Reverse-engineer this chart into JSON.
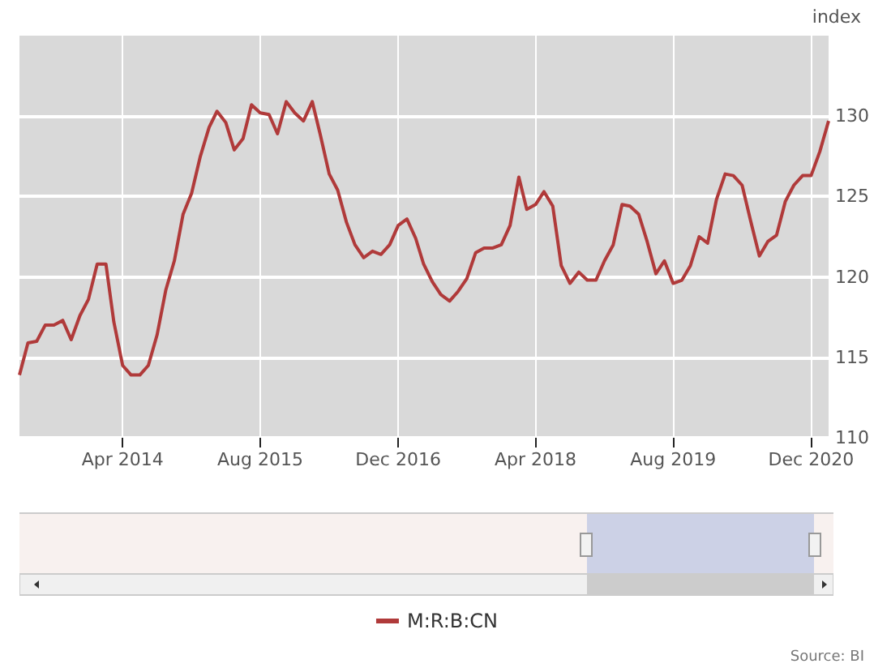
{
  "chart_data": {
    "type": "line",
    "ylabel": "index",
    "annotations": [
      "Source: BI"
    ],
    "x": [
      "2013-04",
      "2013-05",
      "2013-06",
      "2013-07",
      "2013-08",
      "2013-09",
      "2013-10",
      "2013-11",
      "2013-12",
      "2014-01",
      "2014-02",
      "2014-03",
      "2014-04",
      "2014-05",
      "2014-06",
      "2014-07",
      "2014-08",
      "2014-09",
      "2014-10",
      "2014-11",
      "2014-12",
      "2015-01",
      "2015-02",
      "2015-03",
      "2015-04",
      "2015-05",
      "2015-06",
      "2015-07",
      "2015-08",
      "2015-09",
      "2015-10",
      "2015-11",
      "2015-12",
      "2016-01",
      "2016-02",
      "2016-03",
      "2016-04",
      "2016-05",
      "2016-06",
      "2016-07",
      "2016-08",
      "2016-09",
      "2016-10",
      "2016-11",
      "2016-12",
      "2017-01",
      "2017-02",
      "2017-03",
      "2017-04",
      "2017-05",
      "2017-06",
      "2017-07",
      "2017-08",
      "2017-09",
      "2017-10",
      "2017-11",
      "2017-12",
      "2018-01",
      "2018-02",
      "2018-03",
      "2018-04",
      "2018-05",
      "2018-06",
      "2018-07",
      "2018-08",
      "2018-09",
      "2018-10",
      "2018-11",
      "2018-12",
      "2019-01",
      "2019-02",
      "2019-03",
      "2019-04",
      "2019-05",
      "2019-06",
      "2019-07",
      "2019-08",
      "2019-09",
      "2019-10",
      "2019-11",
      "2019-12",
      "2020-01",
      "2020-02",
      "2020-03",
      "2020-04",
      "2020-05",
      "2020-06",
      "2020-07",
      "2020-08",
      "2020-09",
      "2020-10",
      "2020-11",
      "2020-12",
      "2021-01",
      "2021-02"
    ],
    "series": [
      {
        "name": "M:R:B:CN",
        "color": "#b03a3a",
        "values": [
          113.9,
          115.9,
          116.0,
          117.0,
          117.0,
          117.3,
          116.1,
          117.6,
          118.6,
          120.8,
          120.8,
          117.2,
          114.5,
          113.9,
          113.9,
          114.5,
          116.4,
          119.2,
          121.0,
          123.9,
          125.2,
          127.5,
          129.3,
          130.3,
          129.6,
          127.9,
          128.6,
          130.7,
          130.2,
          130.1,
          128.9,
          130.9,
          130.2,
          129.7,
          130.9,
          128.8,
          126.4,
          125.4,
          123.4,
          122.0,
          121.2,
          121.6,
          121.4,
          122.0,
          123.2,
          123.6,
          122.4,
          120.8,
          119.7,
          118.9,
          118.5,
          119.1,
          119.9,
          121.5,
          121.8,
          121.8,
          122.0,
          123.2,
          126.2,
          124.2,
          124.5,
          125.3,
          124.4,
          120.7,
          119.6,
          120.3,
          119.8,
          119.8,
          121.0,
          122.0,
          124.5,
          124.4,
          123.9,
          122.2,
          120.2,
          121.0,
          119.6,
          119.8,
          120.7,
          122.5,
          122.1,
          124.8,
          126.4,
          126.3,
          125.7,
          123.5,
          121.3,
          122.2,
          122.6,
          124.7,
          125.7,
          126.3,
          126.3,
          127.8,
          129.7
        ]
      }
    ],
    "xlim": [
      "2013-04",
      "2021-02"
    ],
    "xticks": [
      {
        "value": "2014-04",
        "label": "Apr 2014"
      },
      {
        "value": "2015-08",
        "label": "Aug 2015"
      },
      {
        "value": "2016-12",
        "label": "Dec 2016"
      },
      {
        "value": "2018-04",
        "label": "Apr 2018"
      },
      {
        "value": "2019-08",
        "label": "Aug 2019"
      },
      {
        "value": "2020-12",
        "label": "Dec 2020"
      }
    ],
    "ylim": [
      110,
      135
    ],
    "yticks": [
      110,
      115,
      120,
      125,
      130
    ],
    "grid": true,
    "legend": "bottom",
    "marker": "none",
    "line_style": "solid"
  }
}
